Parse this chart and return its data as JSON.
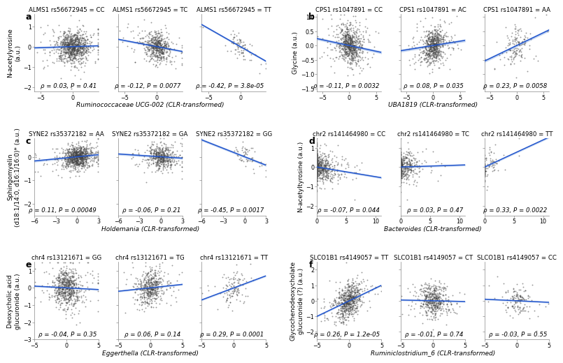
{
  "panels": [
    {
      "label": "a",
      "ylabel": "N-acetylyrosine\n(a.u.)",
      "xlabel": "Ruminococcaceae UCG-002 (CLR-transformed)",
      "subplots": [
        {
          "title": "ALMS1 rs56672945 = CC",
          "rho": 0.03,
          "P": "0.41",
          "xlim": [
            -6,
            4
          ],
          "ylim": [
            -2.2,
            1.6
          ],
          "slope": 0.01,
          "n": 900,
          "xstd": 1.8,
          "ystd": 0.45
        },
        {
          "title": "ALMS1 rs56672945 = TC",
          "rho": -0.12,
          "P": "0.0077",
          "xlim": [
            -6,
            4
          ],
          "ylim": [
            -2.2,
            1.6
          ],
          "slope": -0.06,
          "n": 550,
          "xstd": 1.5,
          "ystd": 0.4
        },
        {
          "title": "ALMS1 rs56672945 = TT",
          "rho": -0.42,
          "P": "3.8e-05",
          "xlim": [
            -6,
            4
          ],
          "ylim": [
            -2.2,
            1.6
          ],
          "slope": -0.18,
          "n": 75,
          "xstd": 1.6,
          "ystd": 0.38
        }
      ]
    },
    {
      "label": "b",
      "ylabel": "Glycine (a.u.)",
      "xlabel": "UBA1819 (CLR-transformed)",
      "subplots": [
        {
          "title": "CPS1 rs1047891 = CC",
          "rho": -0.11,
          "P": "0.0032",
          "xlim": [
            -6,
            6
          ],
          "ylim": [
            -1.6,
            1.1
          ],
          "slope": -0.04,
          "n": 700,
          "xstd": 1.6,
          "ystd": 0.38
        },
        {
          "title": "CPS1 rs1047891 = AC",
          "rho": 0.08,
          "P": "0.035",
          "xlim": [
            -6,
            6
          ],
          "ylim": [
            -1.6,
            1.1
          ],
          "slope": 0.03,
          "n": 650,
          "xstd": 1.5,
          "ystd": 0.35
        },
        {
          "title": "CPS1 rs1047891 = AA",
          "rho": 0.23,
          "P": "0.0058",
          "xlim": [
            -6,
            6
          ],
          "ylim": [
            -1.6,
            1.1
          ],
          "slope": 0.09,
          "n": 140,
          "xstd": 1.8,
          "ystd": 0.38
        }
      ]
    },
    {
      "label": "c",
      "ylabel": "Sphingomyelin\n(d18:1/14:0, d16:1/16:0)* (a.u.)",
      "xlabel": "Holdemania (CLR-transformed)",
      "subplots": [
        {
          "title": "SYNE2 rs35372182 = AA",
          "rho": 0.11,
          "P": "0.00049",
          "xlim": [
            -6,
            3
          ],
          "ylim": [
            -2.5,
            0.8
          ],
          "slope": 0.03,
          "n": 900,
          "xstd": 1.4,
          "ystd": 0.28
        },
        {
          "title": "SYNE2 rs35372182 = GA",
          "rho": -0.06,
          "P": "0.21",
          "xlim": [
            -6,
            3
          ],
          "ylim": [
            -2.5,
            0.8
          ],
          "slope": -0.02,
          "n": 480,
          "xstd": 1.3,
          "ystd": 0.28
        },
        {
          "title": "SYNE2 rs35372182 = GG",
          "rho": -0.45,
          "P": "0.0017",
          "xlim": [
            -6,
            3
          ],
          "ylim": [
            -2.5,
            0.8
          ],
          "slope": -0.12,
          "n": 55,
          "xstd": 1.5,
          "ystd": 0.28
        }
      ]
    },
    {
      "label": "d",
      "ylabel": "N-acetyltyrosine (a.u.)",
      "xlabel": "Bacteroides (CLR-transformed)",
      "subplots": [
        {
          "title": "chr2 rs141464980 = CC",
          "rho": -0.07,
          "P": "0.044",
          "xlim": [
            0,
            11
          ],
          "ylim": [
            -2.5,
            1.5
          ],
          "slope": -0.05,
          "n": 750,
          "xstd": 2.2,
          "ystd": 0.42
        },
        {
          "title": "chr2 rs141464980 = TC",
          "rho": 0.03,
          "P": "0.47",
          "xlim": [
            0,
            11
          ],
          "ylim": [
            -2.5,
            1.5
          ],
          "slope": 0.01,
          "n": 500,
          "xstd": 2.0,
          "ystd": 0.4
        },
        {
          "title": "chr2 rs141464980 = TT",
          "rho": 0.33,
          "P": "0.0022",
          "xlim": [
            0,
            11
          ],
          "ylim": [
            -2.5,
            1.5
          ],
          "slope": 0.14,
          "n": 95,
          "xstd": 2.2,
          "ystd": 0.42
        }
      ]
    },
    {
      "label": "e",
      "ylabel": "Deoxycholic acid\nglucuronide (a.u.)",
      "xlabel": "Eggerthella (CLR-transformed)",
      "subplots": [
        {
          "title": "chr4 rs13121671 = GG",
          "rho": -0.04,
          "P": "0.35",
          "xlim": [
            -5,
            5
          ],
          "ylim": [
            -3.0,
            1.5
          ],
          "slope": -0.02,
          "n": 650,
          "xstd": 1.6,
          "ystd": 0.65
        },
        {
          "title": "chr4 rs13121671 = TG",
          "rho": 0.06,
          "P": "0.14",
          "xlim": [
            -5,
            5
          ],
          "ylim": [
            -3.0,
            1.5
          ],
          "slope": 0.04,
          "n": 480,
          "xstd": 1.5,
          "ystd": 0.6
        },
        {
          "title": "chr4 rs13121671 = TT",
          "rho": 0.29,
          "P": "0.0001",
          "xlim": [
            -5,
            5
          ],
          "ylim": [
            -3.0,
            1.5
          ],
          "slope": 0.14,
          "n": 110,
          "xstd": 1.6,
          "ystd": 0.62
        }
      ]
    },
    {
      "label": "f",
      "ylabel": "Glycochenodeoxycholate\nglucuronide (?) (a.u.)",
      "xlabel": "Ruminiclostridium_6 (CLR-transformed)",
      "subplots": [
        {
          "title": "SLCO1B1 rs4149057 = TT",
          "rho": 0.26,
          "P": "1.2e-05",
          "xlim": [
            -5,
            5
          ],
          "ylim": [
            -2.5,
            2.5
          ],
          "slope": 0.2,
          "n": 650,
          "xstd": 1.5,
          "ystd": 0.65
        },
        {
          "title": "SLCO1B1 rs4149057 = CT",
          "rho": -0.01,
          "P": "0.74",
          "xlim": [
            -5,
            5
          ],
          "ylim": [
            -2.5,
            2.5
          ],
          "slope": -0.01,
          "n": 480,
          "xstd": 1.5,
          "ystd": 0.62
        },
        {
          "title": "SLCO1B1 rs4149057 = CC",
          "rho": -0.03,
          "P": "0.55",
          "xlim": [
            -5,
            5
          ],
          "ylim": [
            -2.5,
            2.5
          ],
          "slope": -0.02,
          "n": 140,
          "xstd": 1.5,
          "ystd": 0.6
        }
      ]
    }
  ],
  "dot_color": "#444444",
  "line_color": "#2255cc",
  "ci_color": "#b0c8ee",
  "bg_color": "#ffffff",
  "dot_size": 1.8,
  "dot_alpha": 0.55,
  "title_fontsize": 6.2,
  "label_fontsize": 6.5,
  "tick_fontsize": 5.8,
  "annot_fontsize": 6.2,
  "panel_label_fontsize": 9
}
